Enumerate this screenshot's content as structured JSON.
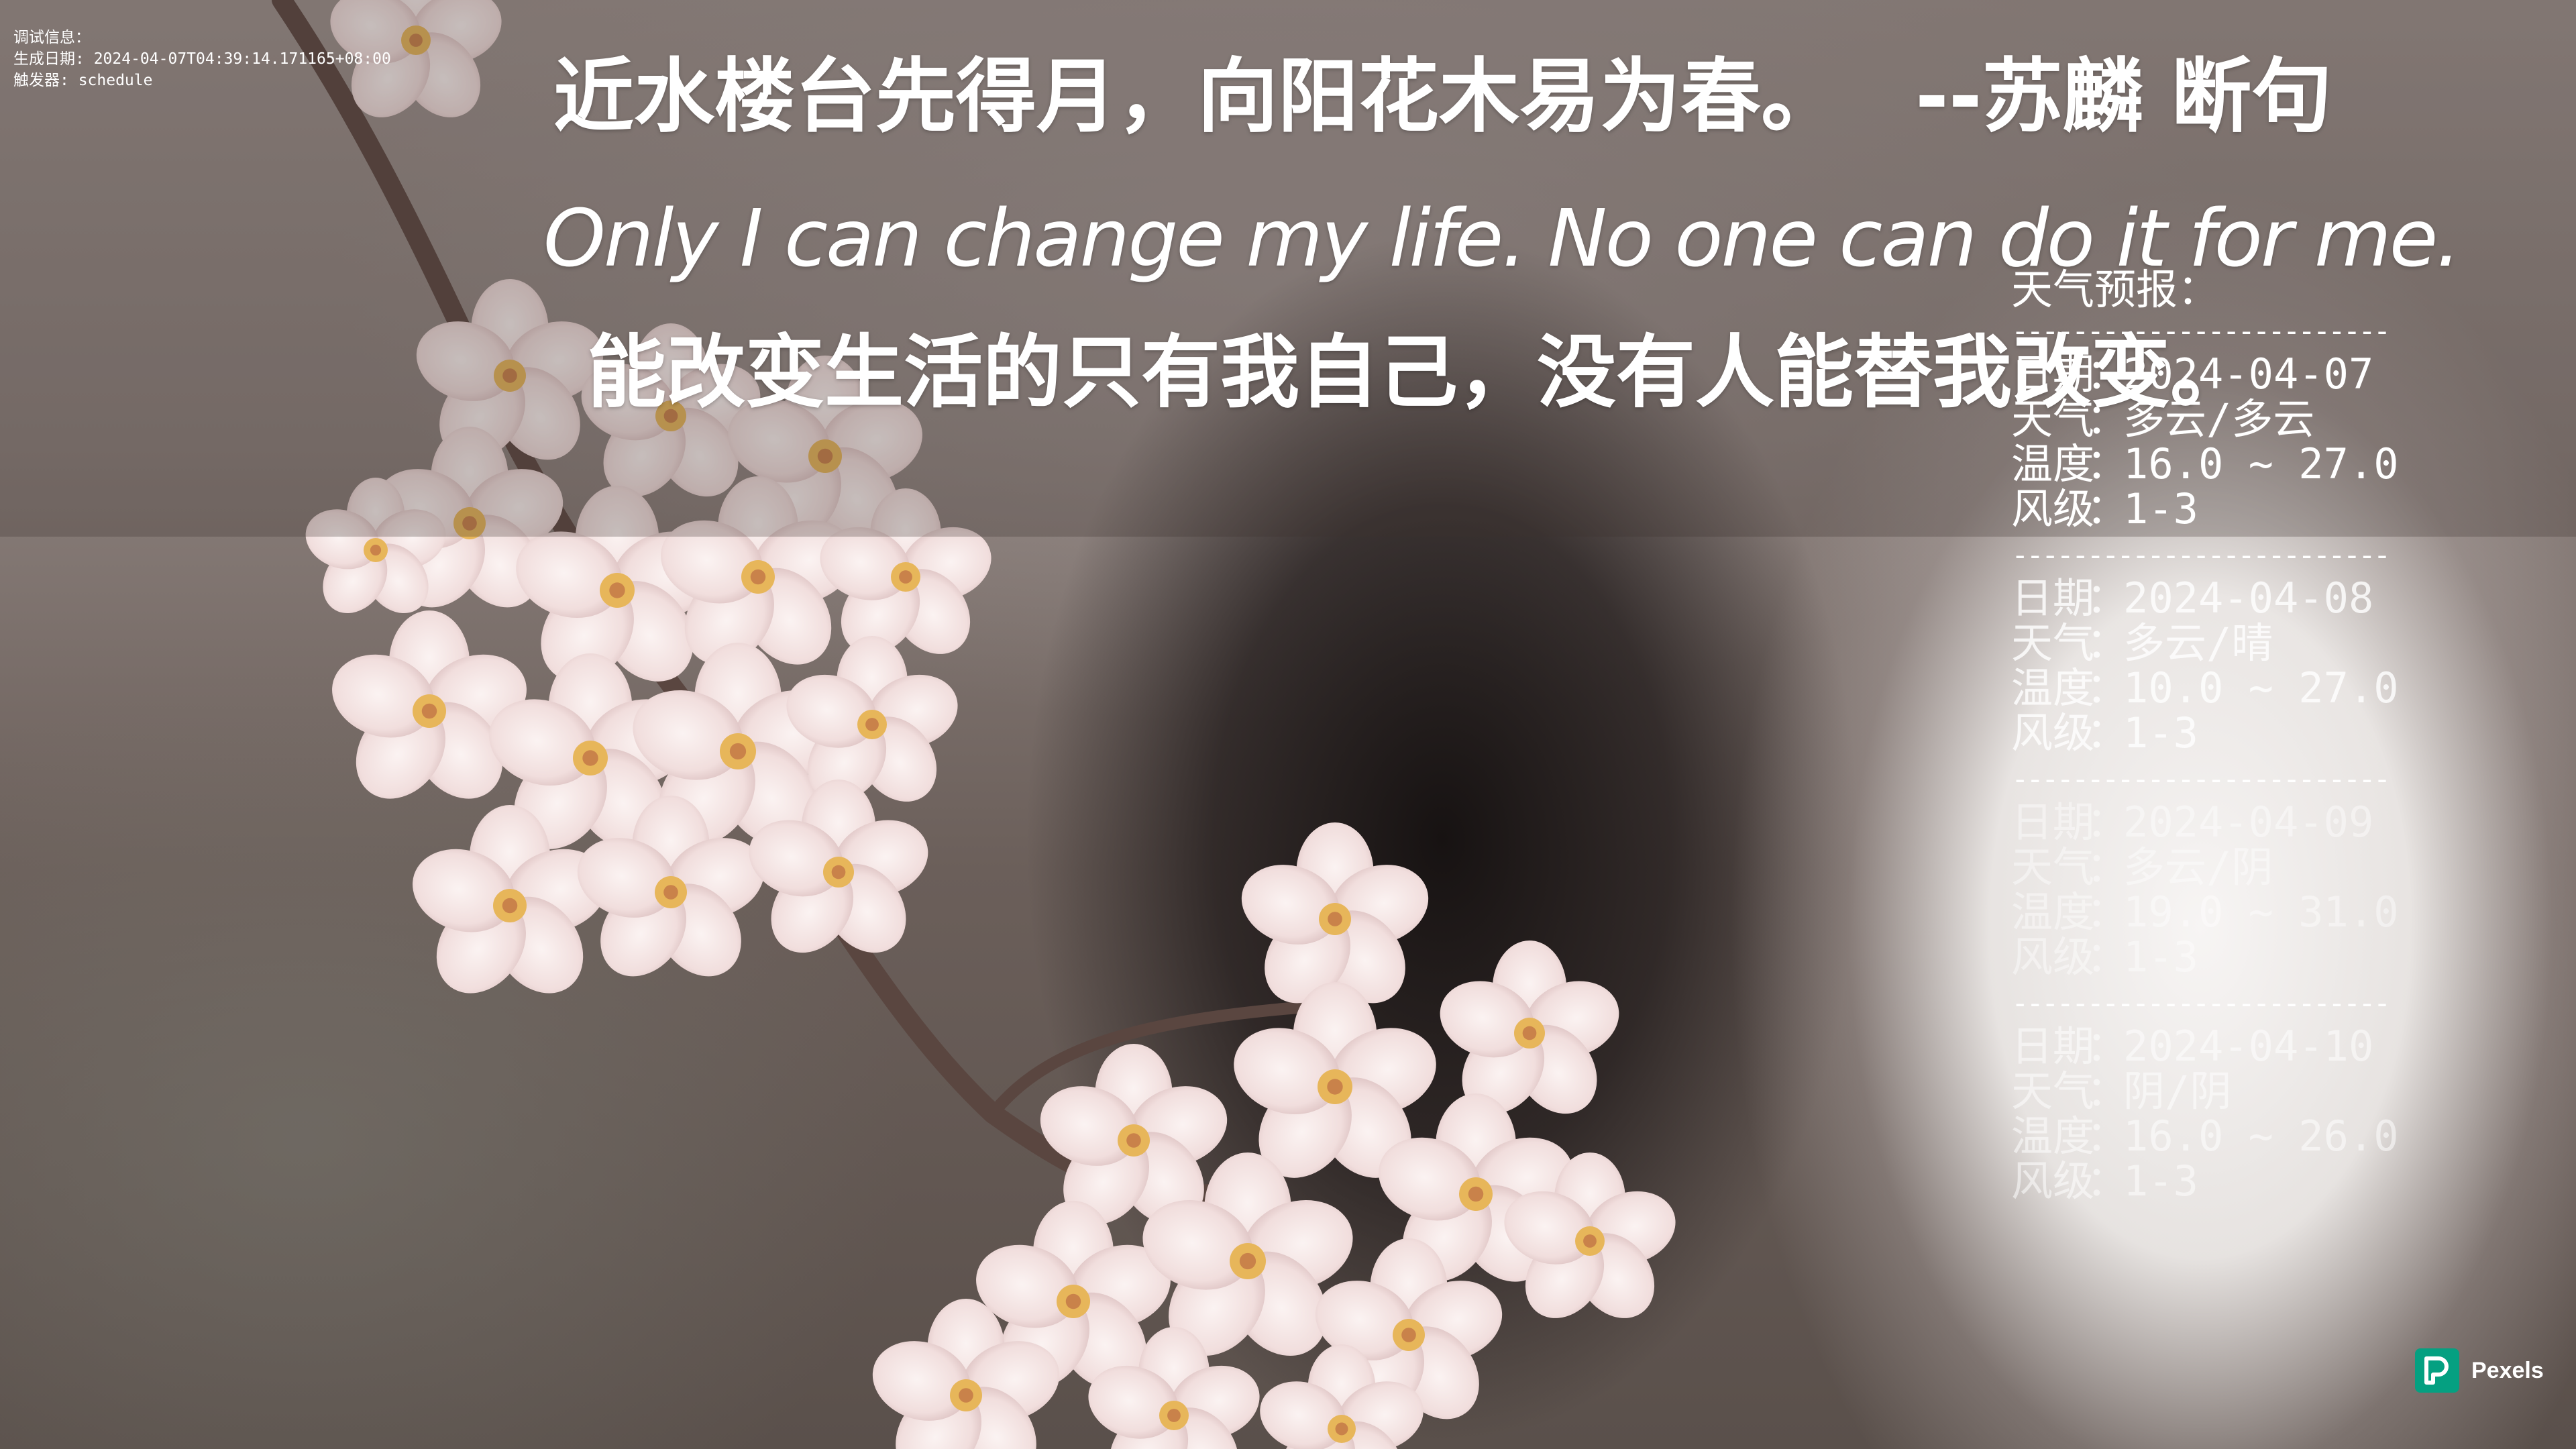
{
  "debug": {
    "label": "调试信息：",
    "generated": "生成日期: 2024-04-07T04:39:14.171165+08:00",
    "trigger": "触发器: schedule"
  },
  "quote": {
    "zh_line": "近水楼台先得月，向阳花木易为春。",
    "zh_author": "--苏麟 断句",
    "en_line": "Only I can change my life. No one can do it for me.",
    "cn_line": "能改变生活的只有我自己，没有人能替我改变。"
  },
  "weather": {
    "title": "天气预报：",
    "rule": "-------------------------",
    "keys": {
      "date": "日期",
      "weather": "天气",
      "temp": "温度",
      "wind": "风级",
      "sep": "："
    },
    "days": [
      {
        "date": "2024-04-07",
        "weather": "多云/多云",
        "temp": "16.0 ~ 27.0",
        "wind": "1-3"
      },
      {
        "date": "2024-04-08",
        "weather": "多云/晴",
        "temp": "10.0 ~ 27.0",
        "wind": "1-3"
      },
      {
        "date": "2024-04-09",
        "weather": "多云/阴",
        "temp": "19.0 ~ 31.0",
        "wind": "1-3"
      },
      {
        "date": "2024-04-10",
        "weather": "阴/阴",
        "temp": "16.0 ~ 26.0",
        "wind": "1-3"
      }
    ]
  },
  "pexels": {
    "label": "Pexels",
    "logo_icon": "pexels-logo-icon",
    "brand_color": "#05A081"
  }
}
